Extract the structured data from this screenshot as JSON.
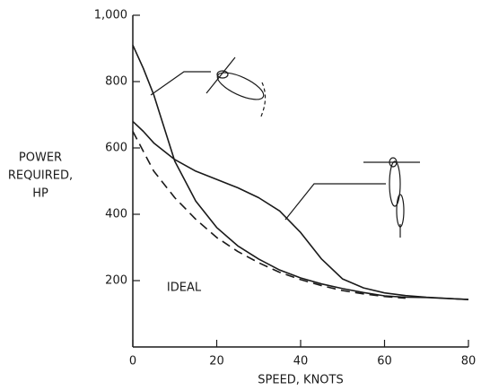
{
  "chart_data": {
    "type": "line",
    "y_label_lines": [
      "POWER",
      "REQUIRED,",
      "HP"
    ],
    "x_label": "SPEED, KNOTS",
    "x": [
      0,
      2.5,
      5,
      10,
      15,
      20,
      25,
      30,
      35,
      40,
      45,
      50,
      55,
      60,
      65,
      70,
      80
    ],
    "series": [
      {
        "color": "#1a1a1a",
        "dashed": false,
        "values": [
          910,
          840,
          760,
          560,
          440,
          360,
          305,
          265,
          232,
          208,
          190,
          176,
          164,
          154,
          150,
          149,
          143
        ]
      },
      {
        "color": "#1a1a1a",
        "dashed": false,
        "values": [
          680,
          650,
          615,
          565,
          530,
          505,
          480,
          450,
          410,
          345,
          265,
          205,
          178,
          163,
          155,
          150,
          143
        ]
      },
      {
        "name": "IDEAL",
        "color": "#1a1a1a",
        "dashed": true,
        "values": [
          650,
          590,
          530,
          450,
          385,
          330,
          288,
          254,
          225,
          203,
          185,
          170,
          160,
          152,
          147,
          null,
          null
        ]
      }
    ],
    "xlim": [
      0,
      80
    ],
    "xticks": [
      0,
      20,
      40,
      60,
      80
    ],
    "ylim": [
      0,
      1000
    ],
    "yticks": [
      200,
      400,
      600,
      800,
      {
        "value": 1000,
        "label": "1,000"
      }
    ],
    "grid": false
  }
}
